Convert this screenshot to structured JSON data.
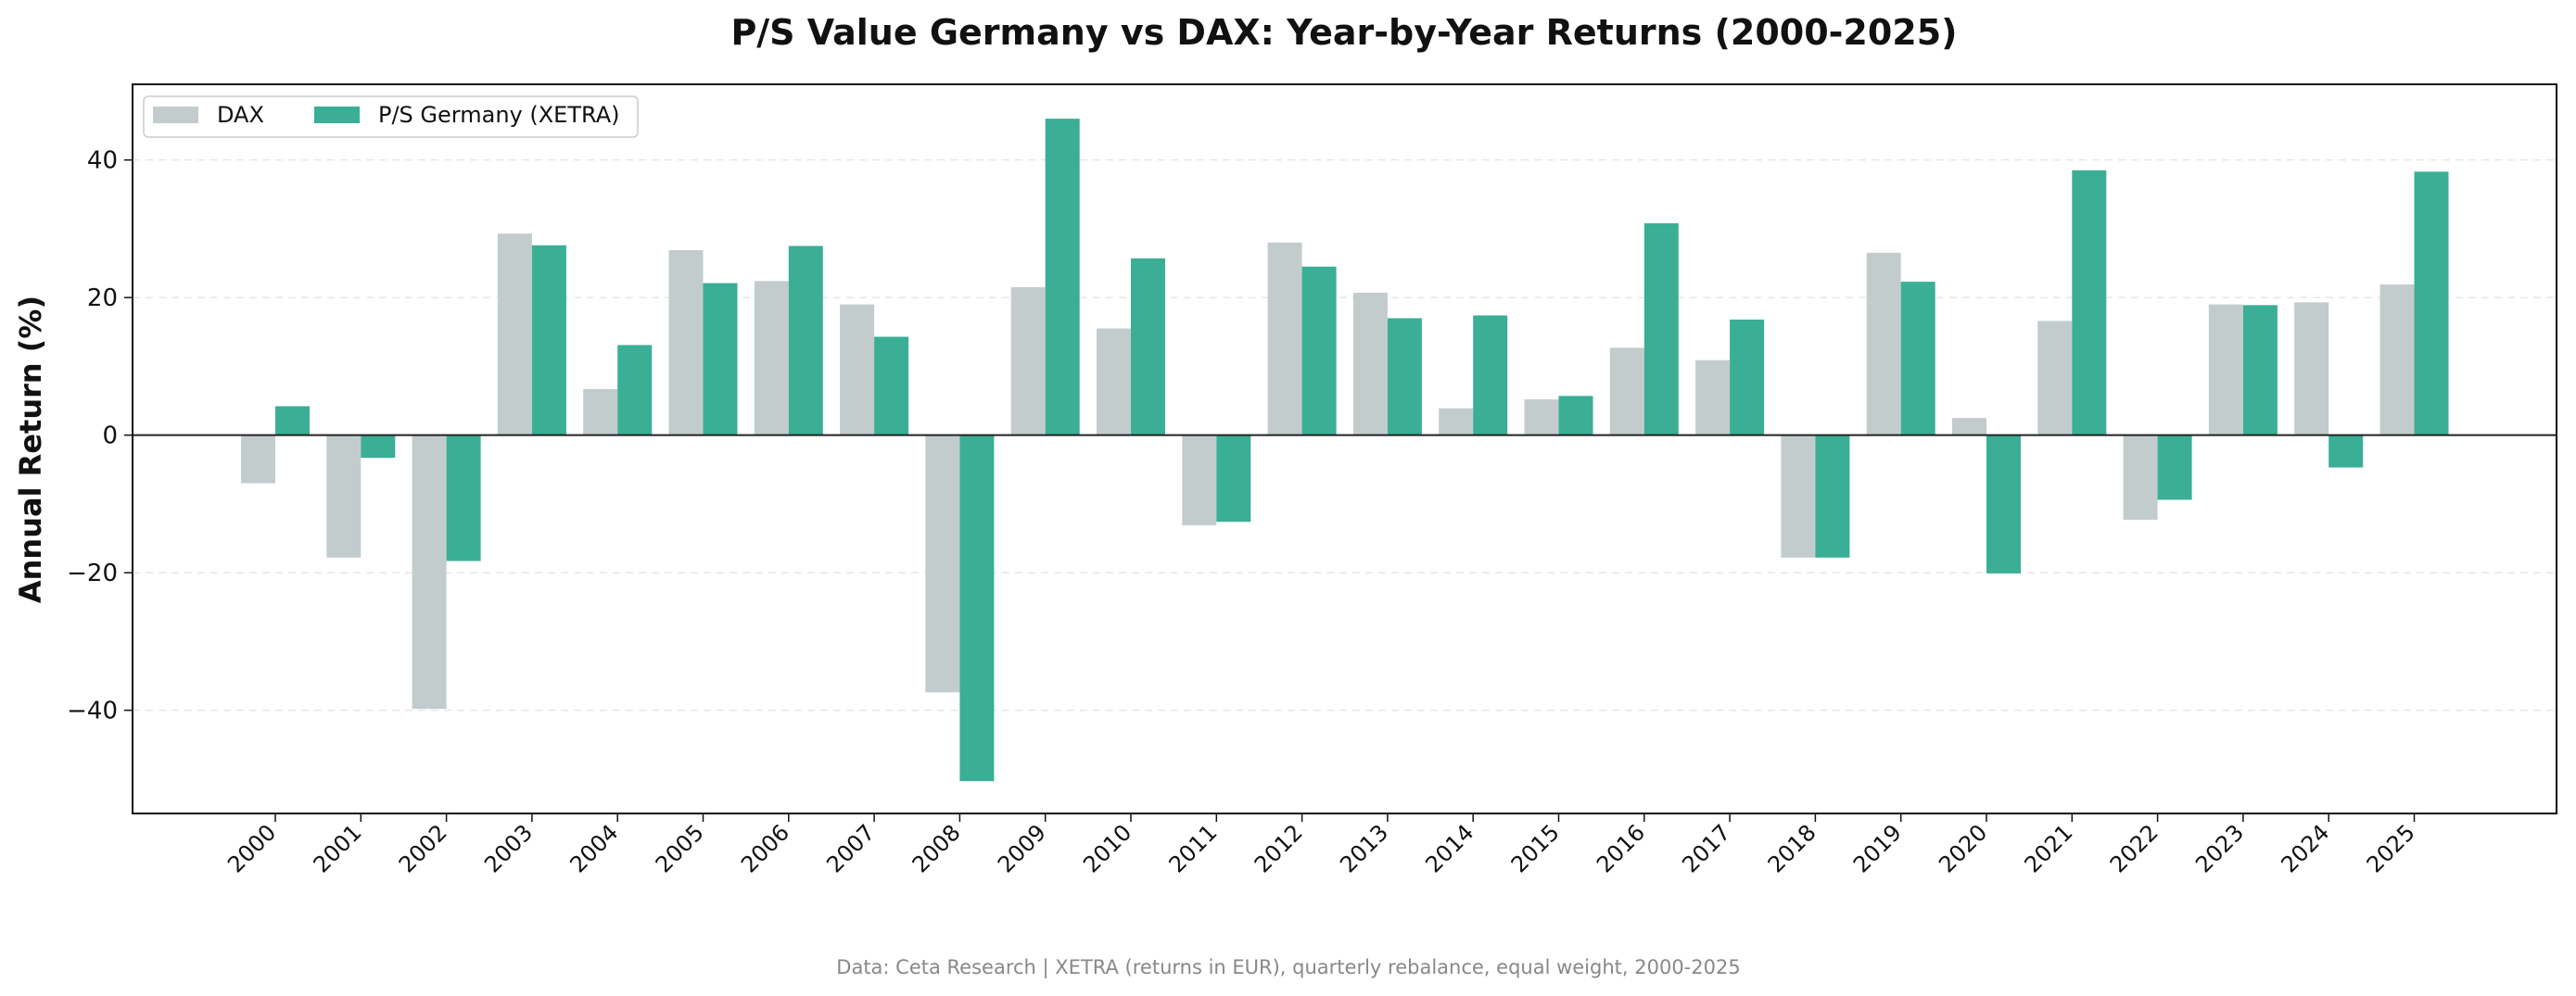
{
  "chart_data": {
    "type": "bar",
    "title": "P/S Value Germany vs DAX: Year-by-Year Returns (2000-2025)",
    "xlabel": "",
    "ylabel": "Annual Return (%)",
    "ylim": [
      -55,
      51
    ],
    "yticks": [
      -40,
      -20,
      0,
      20,
      40
    ],
    "ytick_labels": [
      "−40",
      "−20",
      "0",
      "20",
      "40"
    ],
    "grid": "horizontal dashed",
    "legend_position": "top-left",
    "categories": [
      "2000",
      "2001",
      "2002",
      "2003",
      "2004",
      "2005",
      "2006",
      "2007",
      "2008",
      "2009",
      "2010",
      "2011",
      "2012",
      "2013",
      "2014",
      "2015",
      "2016",
      "2017",
      "2018",
      "2019",
      "2020",
      "2021",
      "2022",
      "2023",
      "2024",
      "2025"
    ],
    "series": [
      {
        "name": "DAX",
        "color": "#c3cccc",
        "values": [
          -7.0,
          -17.8,
          -39.8,
          29.3,
          6.7,
          26.9,
          22.4,
          19.0,
          -37.4,
          21.5,
          15.5,
          -13.1,
          28.0,
          20.7,
          3.9,
          5.2,
          12.7,
          10.9,
          -17.8,
          26.5,
          2.5,
          16.6,
          -12.3,
          19.0,
          19.3,
          21.9
        ]
      },
      {
        "name": "P/S Germany (XETRA)",
        "color": "#3aaf95",
        "values": [
          4.2,
          -3.3,
          -18.3,
          27.6,
          13.1,
          22.1,
          27.5,
          14.3,
          -50.3,
          46.0,
          25.7,
          -12.6,
          24.5,
          17.0,
          17.4,
          5.7,
          30.8,
          16.8,
          -17.8,
          22.3,
          -20.1,
          38.5,
          -9.4,
          18.9,
          -4.7,
          38.3
        ]
      }
    ],
    "source_note": "Data: Ceta Research | XETRA (returns in EUR), quarterly rebalance, equal weight, 2000-2025"
  }
}
